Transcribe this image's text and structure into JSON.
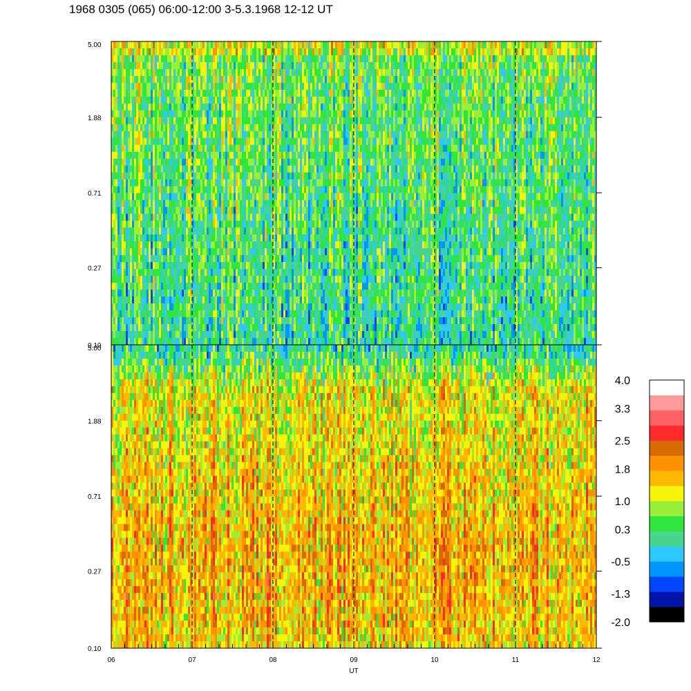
{
  "title": "1968 0305 (065) 06:00-12:00 3-5.3.1968  12-12 UT",
  "chart_data": {
    "type": "heatmap",
    "panels": [
      {
        "name": "",
        "y_ticks": [
          "0.10",
          "0.27",
          "0.71",
          "1.88",
          "5.00"
        ],
        "ylim": [
          0.1,
          5.0
        ],
        "y_scale": "log",
        "dominant_levels": "green/cyan, low values (about -1.3 to 1.0)"
      },
      {
        "name": "",
        "y_ticks": [
          "0.10",
          "0.27",
          "0.71",
          "1.88",
          "5.00"
        ],
        "ylim": [
          0.1,
          5.0
        ],
        "y_scale": "log",
        "dominant_levels": "yellow/orange, higher values (about 0.3 to 2.5)"
      }
    ],
    "x_ticks": [
      "06",
      "07",
      "08",
      "09",
      "10",
      "11",
      "12"
    ],
    "x_values": [
      6,
      7,
      8,
      9,
      10,
      11,
      12
    ],
    "xlim": [
      6,
      12
    ],
    "xlabel": "UT",
    "dashed_hour_lines": [
      7,
      8,
      9,
      10,
      11
    ],
    "colorbar": {
      "labels": [
        "4.0",
        "3.3",
        "2.5",
        "1.8",
        "1.0",
        "0.3",
        "-0.5",
        "-1.3",
        "-2.0"
      ],
      "range": [
        -2.0,
        4.0
      ],
      "colors_bottom_to_top": [
        "#000000",
        "#0015a8",
        "#0046ff",
        "#0096ff",
        "#2ec8ff",
        "#48d68e",
        "#2ee63c",
        "#98f03a",
        "#f5f50a",
        "#ffb800",
        "#ff9200",
        "#d76a00",
        "#ff2a2a",
        "#ff6262",
        "#ff9a9a",
        "#ffffff"
      ]
    }
  }
}
